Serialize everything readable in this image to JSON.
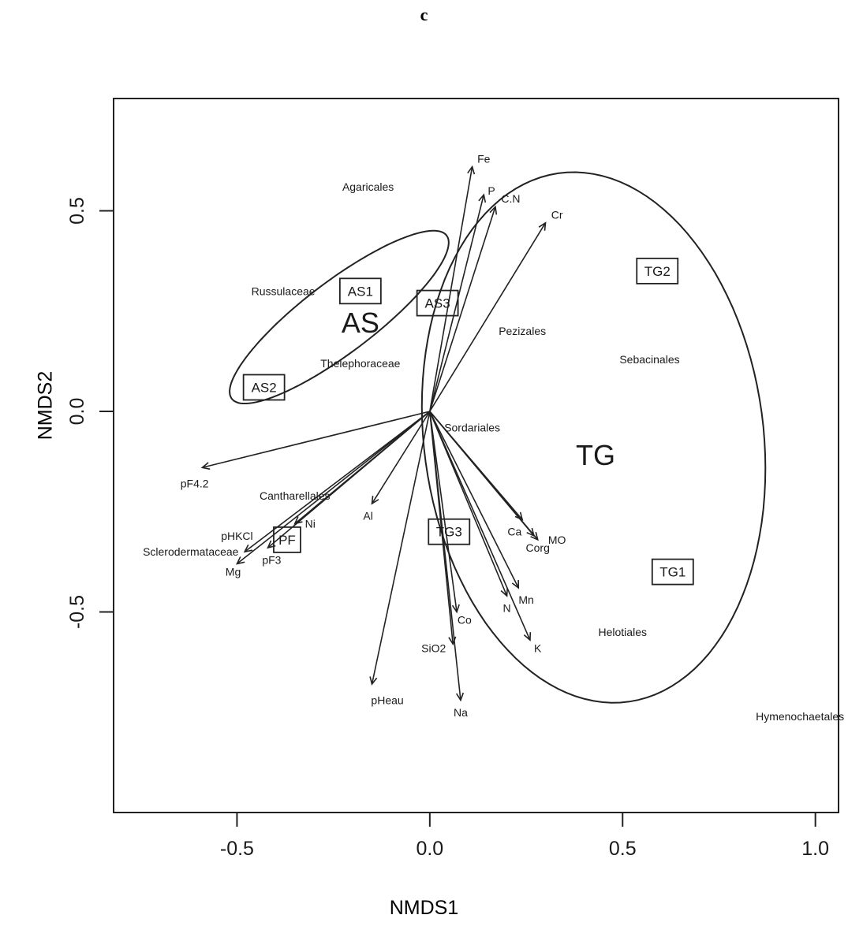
{
  "chart_data": {
    "type": "scatter",
    "panel_label": "c",
    "xlabel": "NMDS1",
    "ylabel": "NMDS2",
    "xlim": [
      -0.82,
      1.06
    ],
    "ylim": [
      -1.0,
      0.78
    ],
    "x_ticks": [
      -0.5,
      0.0,
      0.5,
      1.0
    ],
    "x_tick_labels": [
      "-0.5",
      "0.0",
      "0.5",
      "1.0"
    ],
    "y_ticks": [
      -0.5,
      0.0,
      0.5
    ],
    "y_tick_labels": [
      "-0.5",
      "0.0",
      "0.5"
    ],
    "grid": false,
    "legend": "none",
    "vectors": [
      {
        "label": "Fe",
        "x": 0.11,
        "y": 0.61,
        "lx": 0.14,
        "ly": 0.63
      },
      {
        "label": "P",
        "x": 0.14,
        "y": 0.54,
        "lx": 0.16,
        "ly": 0.55
      },
      {
        "label": "C.N",
        "x": 0.17,
        "y": 0.51,
        "lx": 0.21,
        "ly": 0.53
      },
      {
        "label": "Cr",
        "x": 0.3,
        "y": 0.47,
        "lx": 0.33,
        "ly": 0.49
      },
      {
        "label": "pF4.2",
        "x": -0.59,
        "y": -0.14,
        "lx": -0.61,
        "ly": -0.18
      },
      {
        "label": "pHKCl",
        "x": -0.48,
        "y": -0.35,
        "lx": -0.5,
        "ly": -0.31
      },
      {
        "label": "Mg",
        "x": -0.5,
        "y": -0.38,
        "lx": -0.51,
        "ly": -0.4
      },
      {
        "label": "Ni",
        "x": -0.35,
        "y": -0.28,
        "lx": -0.31,
        "ly": -0.28
      },
      {
        "label": "pF3",
        "x": -0.42,
        "y": -0.34,
        "lx": -0.41,
        "ly": -0.37
      },
      {
        "label": "Al",
        "x": -0.15,
        "y": -0.23,
        "lx": -0.16,
        "ly": -0.26
      },
      {
        "label": "pHeau",
        "x": -0.15,
        "y": -0.68,
        "lx": -0.11,
        "ly": -0.72
      },
      {
        "label": "Na",
        "x": 0.08,
        "y": -0.72,
        "lx": 0.08,
        "ly": -0.75
      },
      {
        "label": "SiO2",
        "x": 0.06,
        "y": -0.58,
        "lx": 0.01,
        "ly": -0.59
      },
      {
        "label": "Co",
        "x": 0.07,
        "y": -0.5,
        "lx": 0.09,
        "ly": -0.52
      },
      {
        "label": "N",
        "x": 0.2,
        "y": -0.46,
        "lx": 0.2,
        "ly": -0.49
      },
      {
        "label": "Mn",
        "x": 0.23,
        "y": -0.44,
        "lx": 0.25,
        "ly": -0.47
      },
      {
        "label": "K",
        "x": 0.26,
        "y": -0.57,
        "lx": 0.28,
        "ly": -0.59
      },
      {
        "label": "Ca",
        "x": 0.24,
        "y": -0.27,
        "lx": 0.22,
        "ly": -0.3
      },
      {
        "label": "MO",
        "x": 0.28,
        "y": -0.32,
        "lx": 0.33,
        "ly": -0.32
      },
      {
        "label": "Corg",
        "x": 0.27,
        "y": -0.31,
        "lx": 0.28,
        "ly": -0.34
      }
    ],
    "taxa": [
      {
        "label": "Agaricales",
        "x": -0.16,
        "y": 0.56
      },
      {
        "label": "Russulaceae",
        "x": -0.38,
        "y": 0.3
      },
      {
        "label": "Thelephoraceae",
        "x": -0.18,
        "y": 0.12
      },
      {
        "label": "Pezizales",
        "x": 0.24,
        "y": 0.2
      },
      {
        "label": "Sebacinales",
        "x": 0.57,
        "y": 0.13
      },
      {
        "label": "Sordariales",
        "x": 0.11,
        "y": -0.04
      },
      {
        "label": "Cantharellales",
        "x": -0.35,
        "y": -0.21
      },
      {
        "label": "Sclerodermataceae",
        "x": -0.62,
        "y": -0.35
      },
      {
        "label": "Helotiales",
        "x": 0.5,
        "y": -0.55
      },
      {
        "label": "Hymenochaetales",
        "x": 0.96,
        "y": -0.76
      }
    ],
    "sites": [
      {
        "label": "AS1",
        "x": -0.18,
        "y": 0.3
      },
      {
        "label": "AS3",
        "x": 0.02,
        "y": 0.27
      },
      {
        "label": "AS2",
        "x": -0.43,
        "y": 0.06
      },
      {
        "label": "PF",
        "x": -0.37,
        "y": -0.32
      },
      {
        "label": "TG3",
        "x": 0.05,
        "y": -0.3
      },
      {
        "label": "TG2",
        "x": 0.59,
        "y": 0.35
      },
      {
        "label": "TG1",
        "x": 0.63,
        "y": -0.4
      }
    ],
    "groups": [
      {
        "label": "AS",
        "x": -0.18,
        "y": 0.22
      },
      {
        "label": "TG",
        "x": 0.43,
        "y": -0.11
      }
    ]
  }
}
